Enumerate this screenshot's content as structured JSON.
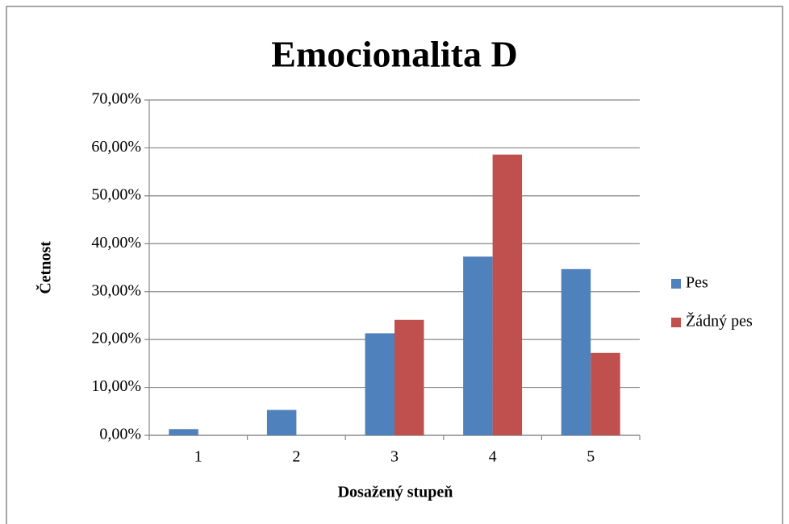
{
  "chart_data": {
    "type": "bar",
    "title": "Emocionalita D",
    "x_label": "Dosažený stupeň",
    "y_label": "Četnost",
    "categories": [
      "1",
      "2",
      "3",
      "4",
      "5"
    ],
    "series": [
      {
        "name": "Pes",
        "color": "#4f81bd",
        "values": [
          1.3,
          5.3,
          21.3,
          37.3,
          34.7
        ]
      },
      {
        "name": "Žádný pes",
        "color": "#c0504d",
        "values": [
          0,
          0,
          24.1,
          58.6,
          17.2
        ]
      }
    ],
    "ylim": [
      0,
      70
    ],
    "yticks": [
      {
        "value": 0,
        "label": "0,00%"
      },
      {
        "value": 10,
        "label": "10,00%"
      },
      {
        "value": 20,
        "label": "20,00%"
      },
      {
        "value": 30,
        "label": "30,00%"
      },
      {
        "value": 40,
        "label": "40,00%"
      },
      {
        "value": 50,
        "label": "50,00%"
      },
      {
        "value": 60,
        "label": "60,00%"
      },
      {
        "value": 70,
        "label": "70,00%"
      }
    ],
    "grid": true,
    "legend": "right"
  }
}
